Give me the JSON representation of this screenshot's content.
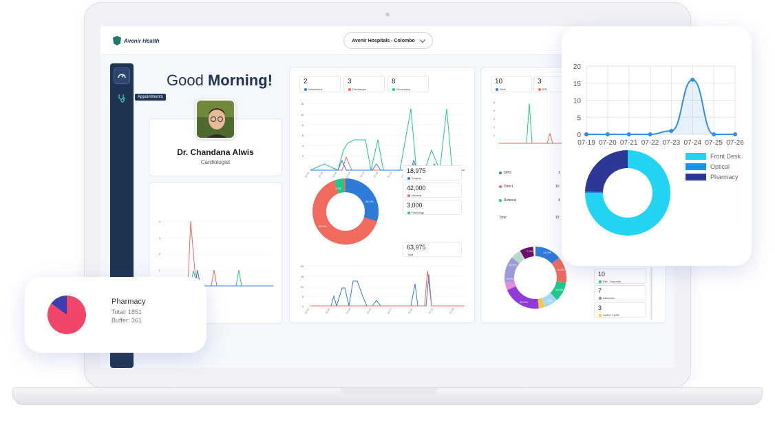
{
  "app": {
    "logo_text": "Avenir Health",
    "hospital": "Avenir Hospitals - Colombo"
  },
  "sidebar": {
    "tooltip": "Appointments"
  },
  "greeting": {
    "prefix": "Good ",
    "bold": "Morning!"
  },
  "doctor": {
    "name": "Dr. Chandana Alwis",
    "role": "Cardiologist"
  },
  "stats_left": [
    {
      "value": "2",
      "label": "Admissions",
      "color": "#2f7bd8"
    },
    {
      "value": "3",
      "label": "Discharges",
      "color": "#f06a5e"
    },
    {
      "value": "8",
      "label": "Occupancy",
      "color": "#1cc88a"
    }
  ],
  "stats_right": [
    {
      "value": "10",
      "label": "Total",
      "color": "#2f7bd8"
    },
    {
      "value": "3",
      "label": "IPD",
      "color": "#f06a5e"
    }
  ],
  "revenue_legend": [
    {
      "value": "18,975",
      "label": "Surgery",
      "color": "#2f7bd8"
    },
    {
      "value": "42,000",
      "label": "General",
      "color": "#f06a5e"
    },
    {
      "value": "3,000",
      "label": "Radiology",
      "color": "#1cc88a"
    }
  ],
  "revenue_total": {
    "value": "63,975",
    "label": "Total"
  },
  "donut_labels": {
    "surgery": "29.7%",
    "general": "65.7%",
    "radiology": "4.7%"
  },
  "visit_types": [
    {
      "label": "OPD",
      "value": "1",
      "color": "#2f7bd8"
    },
    {
      "label": "Direct",
      "value": "10",
      "color": "#f06a5e"
    },
    {
      "label": "Referral",
      "value": "4",
      "color": "#1cc88a"
    },
    {
      "label": "Total",
      "value": "15",
      "color": ""
    }
  ],
  "multi_donut_labels": [
    "14.0%",
    "14.0%",
    "10.0%",
    "7.0%",
    "20.0%",
    "14.0%",
    "14.0%",
    "7.0%"
  ],
  "service_list": [
    {
      "value": "10",
      "label": "BHt - Deposite",
      "color": "#1cc88a"
    },
    {
      "value": "7",
      "label": "Abdomen",
      "color": "#8e7cc3"
    },
    {
      "value": "3",
      "label": "NURO CARE",
      "color": "#f2c94c"
    }
  ],
  "floating_pharmacy": {
    "title": "Pharmacy",
    "total": "Total: 1851",
    "buffer": "Buffer: 361"
  },
  "chart_data": [
    {
      "type": "line",
      "title": "",
      "x": [
        "07-19",
        "07-20",
        "07-21",
        "07-22",
        "07-23",
        "07-24",
        "07-25",
        "07-26"
      ],
      "series": [
        {
          "name": "",
          "values": [
            0,
            0,
            0,
            0,
            1,
            16,
            0,
            0
          ]
        }
      ],
      "ylim": [
        0,
        20
      ],
      "yticks": [
        0,
        5,
        10,
        15,
        20
      ],
      "color": "#2f8fe0"
    },
    {
      "type": "pie",
      "labels": [
        "Front Desk",
        "Optical",
        "Pharmacy"
      ],
      "values": [
        75,
        0.5,
        24.5
      ],
      "colors": [
        "#22d3f2",
        "#1e90f5",
        "#2d3795"
      ],
      "donut": true
    },
    {
      "type": "pie",
      "labels": [
        "Pharmacy",
        ""
      ],
      "values": [
        85,
        15
      ],
      "colors": [
        "#f2456a",
        "#3a3fb0"
      ]
    }
  ]
}
